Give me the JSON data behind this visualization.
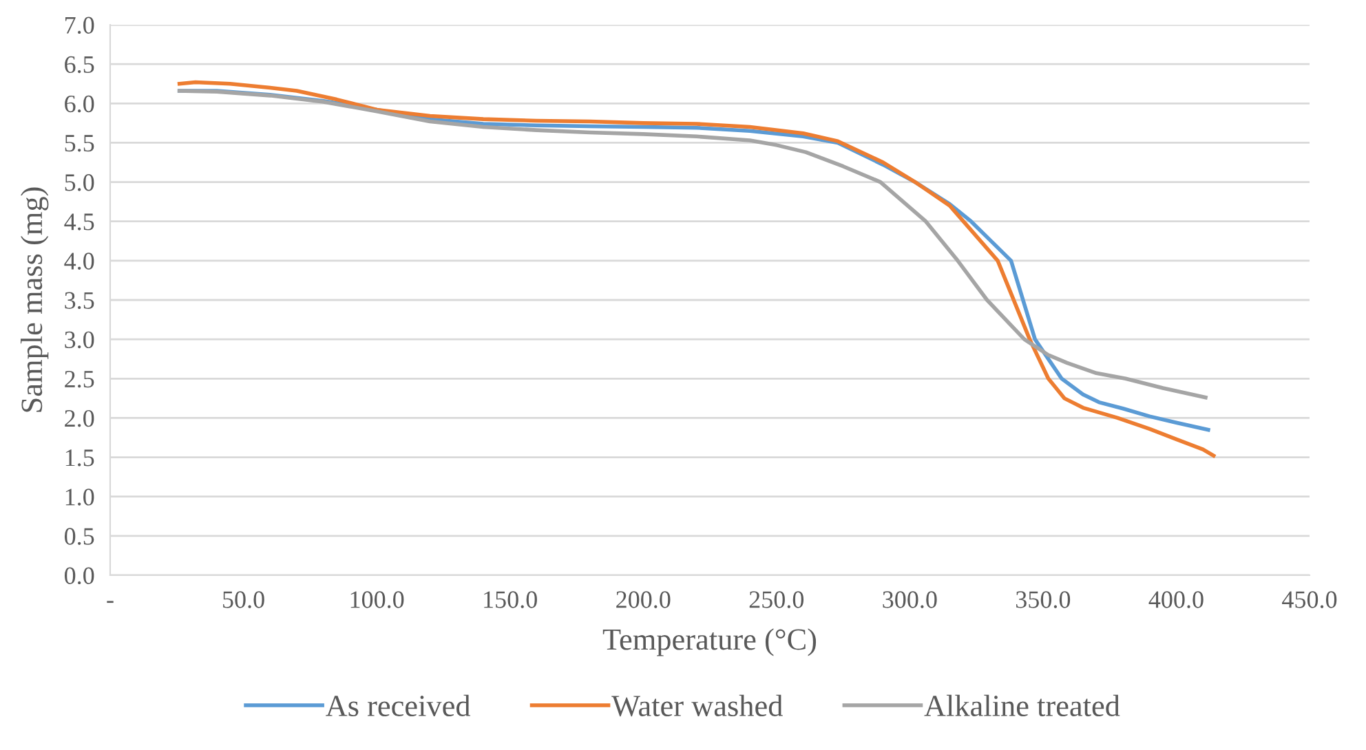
{
  "chart_data": {
    "type": "line",
    "xlabel": "Temperature (°C)",
    "ylabel": "Sample mass (mg)",
    "xlim": [
      0,
      450
    ],
    "xticks": [
      {
        "value": 0,
        "label": "-"
      },
      {
        "value": 50,
        "label": "50.0"
      },
      {
        "value": 100,
        "label": "100.0"
      },
      {
        "value": 150,
        "label": "150.0"
      },
      {
        "value": 200,
        "label": "200.0"
      },
      {
        "value": 250,
        "label": "250.0"
      },
      {
        "value": 300,
        "label": "300.0"
      },
      {
        "value": 350,
        "label": "350.0"
      },
      {
        "value": 400,
        "label": "400.0"
      },
      {
        "value": 450,
        "label": "450.0"
      }
    ],
    "ylim": [
      0,
      7
    ],
    "yticks": [
      {
        "value": 0,
        "label": "0.0"
      },
      {
        "value": 0.5,
        "label": "0.5"
      },
      {
        "value": 1,
        "label": "1.0"
      },
      {
        "value": 1.5,
        "label": "1.5"
      },
      {
        "value": 2,
        "label": "2.0"
      },
      {
        "value": 2.5,
        "label": "2.5"
      },
      {
        "value": 3,
        "label": "3.0"
      },
      {
        "value": 3.5,
        "label": "3.5"
      },
      {
        "value": 4,
        "label": "4.0"
      },
      {
        "value": 4.5,
        "label": "4.5"
      },
      {
        "value": 5,
        "label": "5.0"
      },
      {
        "value": 5.5,
        "label": "5.5"
      },
      {
        "value": 6,
        "label": "6.0"
      },
      {
        "value": 6.5,
        "label": "6.5"
      },
      {
        "value": 7,
        "label": "7.0"
      }
    ],
    "grid": "y",
    "legend": "bottom",
    "marker": "none",
    "line_style": "solid",
    "series": [
      {
        "name": "As received",
        "color": "#5b9bd5",
        "x": [
          26,
          40,
          60,
          80,
          100,
          120,
          140,
          160,
          180,
          200,
          220,
          240,
          260,
          273,
          290,
          302,
          315,
          323,
          338,
          347,
          357,
          365,
          371,
          380,
          390,
          400,
          412
        ],
        "values": [
          6.16,
          6.16,
          6.11,
          6.03,
          5.92,
          5.8,
          5.74,
          5.72,
          5.71,
          5.7,
          5.69,
          5.65,
          5.58,
          5.5,
          5.22,
          5.0,
          4.72,
          4.5,
          4.0,
          3.0,
          2.5,
          2.3,
          2.2,
          2.12,
          2.02,
          1.94,
          1.85
        ]
      },
      {
        "name": "Water washed",
        "color": "#ed7d31",
        "x": [
          26,
          32,
          45,
          60,
          70,
          85,
          100,
          120,
          140,
          160,
          180,
          200,
          220,
          240,
          260,
          273,
          290,
          302,
          315,
          333,
          345,
          352,
          358,
          365,
          378,
          390,
          400,
          410,
          414
        ],
        "values": [
          6.25,
          6.27,
          6.25,
          6.2,
          6.16,
          6.05,
          5.92,
          5.84,
          5.8,
          5.78,
          5.77,
          5.75,
          5.74,
          5.7,
          5.62,
          5.52,
          5.25,
          5.0,
          4.7,
          4.0,
          3.0,
          2.5,
          2.25,
          2.13,
          2.0,
          1.86,
          1.73,
          1.6,
          1.52
        ]
      },
      {
        "name": "Alkaline treated",
        "color": "#a5a5a5",
        "x": [
          26,
          40,
          60,
          80,
          100,
          120,
          140,
          160,
          180,
          200,
          220,
          240,
          250,
          261,
          275,
          289,
          306,
          318,
          329,
          343,
          352,
          359,
          370,
          381,
          395,
          411
        ],
        "values": [
          6.16,
          6.15,
          6.1,
          6.02,
          5.9,
          5.77,
          5.7,
          5.66,
          5.63,
          5.61,
          5.58,
          5.53,
          5.47,
          5.38,
          5.2,
          5.0,
          4.5,
          4.0,
          3.5,
          3.0,
          2.8,
          2.7,
          2.57,
          2.5,
          2.38,
          2.26
        ]
      }
    ]
  }
}
